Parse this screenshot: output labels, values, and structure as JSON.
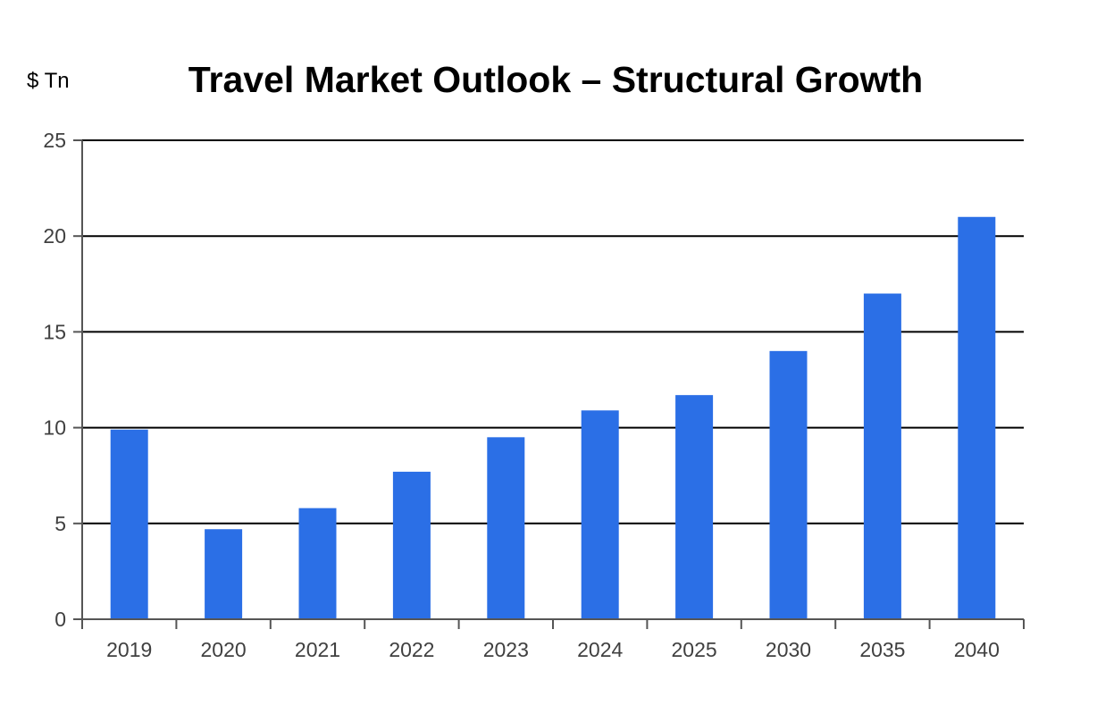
{
  "chart_data": {
    "type": "bar",
    "title": "Travel Market Outlook – Structural Growth",
    "y_unit": "$ Tn",
    "xlabel": "",
    "ylabel": "",
    "categories": [
      "2019",
      "2020",
      "2021",
      "2022",
      "2023",
      "2024",
      "2025",
      "2030",
      "2035",
      "2040"
    ],
    "values": [
      9.9,
      4.7,
      5.8,
      7.7,
      9.5,
      10.9,
      11.7,
      14.0,
      17.0,
      21.0
    ],
    "ylim": [
      0,
      25
    ],
    "yticks": [
      0,
      5,
      10,
      15,
      20,
      25
    ],
    "grid": true,
    "legend": "none",
    "bar_color": "#2b6fe6",
    "grid_color": "#000000",
    "axis_color": "#555555"
  }
}
